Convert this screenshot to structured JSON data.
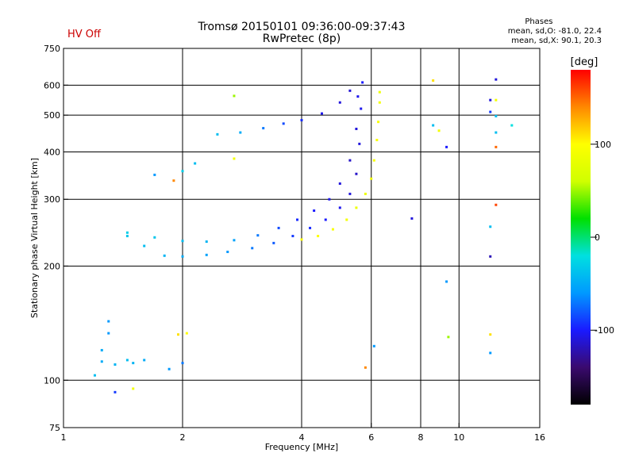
{
  "status_label": "HV Off",
  "title_line1": "Tromsø 20150101 09:36:00-09:37:43",
  "title_line2": "RwPretec (8p)",
  "phases": {
    "heading": "Phases",
    "line_o": "mean, sd,O: -81.0, 22.4",
    "line_x": "mean, sd,X:  90.1, 20.3"
  },
  "colorbar": {
    "unit": "[deg]",
    "range": [
      -180,
      180
    ],
    "ticks": [
      {
        "value": 100,
        "label": "100"
      },
      {
        "value": 0,
        "label": "0"
      },
      {
        "value": -100,
        "label": "-100"
      }
    ],
    "colors": [
      "#000000",
      "#3a0a6e",
      "#1a1aff",
      "#0099ff",
      "#00e0e0",
      "#00e000",
      "#d0ff00",
      "#ffff00",
      "#ff8800",
      "#ff0000"
    ]
  },
  "chart_data": {
    "type": "scatter",
    "xlabel": "Frequency [MHz]",
    "ylabel": "Stationary phase Virtual Height [km]",
    "x_scale": "log",
    "y_scale": "log",
    "xlim": [
      1,
      16
    ],
    "ylim": [
      75,
      750
    ],
    "x_ticks": [
      {
        "value": 1,
        "label": "1"
      },
      {
        "value": 2,
        "label": "2"
      },
      {
        "value": 4,
        "label": "4"
      },
      {
        "value": 6,
        "label": "6"
      },
      {
        "value": 8,
        "label": "8"
      },
      {
        "value": 10,
        "label": "10"
      },
      {
        "value": 16,
        "label": "16"
      }
    ],
    "y_ticks": [
      {
        "value": 75,
        "label": "75"
      },
      {
        "value": 100,
        "label": "100"
      },
      {
        "value": 200,
        "label": "200"
      },
      {
        "value": 300,
        "label": "300"
      },
      {
        "value": 400,
        "label": "400"
      },
      {
        "value": 500,
        "label": "500"
      },
      {
        "value": 600,
        "label": "600"
      },
      {
        "value": 750,
        "label": "750"
      }
    ],
    "grid_x": [
      2,
      4,
      6,
      8,
      10
    ],
    "grid_y": [
      100,
      200,
      300,
      400,
      500,
      600
    ],
    "grid": true,
    "color_by": "phase_deg",
    "traces": [
      {
        "name": "F-trace lower",
        "points": [
          [
            1.45,
            240,
            -35
          ],
          [
            1.6,
            226,
            -40
          ],
          [
            1.8,
            213,
            -45
          ],
          [
            2.0,
            212,
            -50
          ],
          [
            2.3,
            214,
            -55
          ],
          [
            2.6,
            218,
            -60
          ],
          [
            3.0,
            223,
            -70
          ],
          [
            3.4,
            230,
            -80
          ],
          [
            3.8,
            240,
            -90
          ],
          [
            4.2,
            252,
            -95
          ],
          [
            4.6,
            265,
            -100
          ],
          [
            5.0,
            285,
            -105
          ],
          [
            5.3,
            310,
            -110
          ],
          [
            5.5,
            350,
            -115
          ],
          [
            5.6,
            420,
            -110
          ],
          [
            5.65,
            520,
            -105
          ],
          [
            5.7,
            610,
            -100
          ]
        ]
      },
      {
        "name": "F-trace upper",
        "points": [
          [
            1.45,
            245,
            -30
          ],
          [
            1.7,
            238,
            -35
          ],
          [
            2.0,
            233,
            -40
          ],
          [
            2.3,
            232,
            -45
          ],
          [
            2.7,
            234,
            -55
          ],
          [
            3.1,
            241,
            -70
          ],
          [
            3.5,
            252,
            -85
          ],
          [
            3.9,
            265,
            -95
          ],
          [
            4.3,
            280,
            -100
          ],
          [
            4.7,
            300,
            -105
          ],
          [
            5.0,
            330,
            -110
          ],
          [
            5.3,
            380,
            -115
          ],
          [
            5.5,
            460,
            -110
          ],
          [
            5.55,
            560,
            -105
          ]
        ]
      },
      {
        "name": "F2 branch",
        "points": [
          [
            2.45,
            445,
            -40
          ],
          [
            2.8,
            450,
            -50
          ],
          [
            3.2,
            462,
            -70
          ],
          [
            3.6,
            475,
            -85
          ],
          [
            4.0,
            485,
            -95
          ],
          [
            4.5,
            505,
            -105
          ],
          [
            5.0,
            540,
            -110
          ],
          [
            5.3,
            580,
            -112
          ]
        ]
      },
      {
        "name": "X-trace",
        "points": [
          [
            4.0,
            235,
            100
          ],
          [
            4.4,
            240,
            98
          ],
          [
            4.8,
            250,
            95
          ],
          [
            5.2,
            265,
            90
          ],
          [
            5.5,
            285,
            85
          ],
          [
            5.8,
            310,
            85
          ],
          [
            6.0,
            340,
            90
          ],
          [
            6.1,
            380,
            92
          ],
          [
            6.2,
            430,
            95
          ],
          [
            6.25,
            480,
            95
          ],
          [
            6.3,
            540,
            90
          ],
          [
            6.3,
            575,
            85
          ]
        ]
      },
      {
        "name": "low echoes",
        "points": [
          [
            1.3,
            143,
            -60
          ],
          [
            1.3,
            133,
            -60
          ],
          [
            1.25,
            112,
            -50
          ],
          [
            1.35,
            110,
            -45
          ],
          [
            1.45,
            113,
            -40
          ],
          [
            1.5,
            111,
            -45
          ],
          [
            1.6,
            113,
            -50
          ],
          [
            1.85,
            107,
            -60
          ],
          [
            2.0,
            111,
            -70
          ],
          [
            1.2,
            103,
            -40
          ],
          [
            1.35,
            93,
            -90
          ],
          [
            1.25,
            120,
            -50
          ]
        ]
      },
      {
        "name": "scattered",
        "points": [
          [
            1.7,
            348,
            -60
          ],
          [
            1.9,
            336,
            140
          ],
          [
            2.0,
            356,
            -30
          ],
          [
            2.15,
            373,
            -40
          ],
          [
            2.7,
            562,
            50
          ],
          [
            2.7,
            384,
            90
          ],
          [
            1.5,
            95,
            90
          ],
          [
            1.95,
            132,
            110
          ],
          [
            2.05,
            133,
            100
          ],
          [
            5.8,
            108,
            140
          ],
          [
            6.1,
            123,
            -60
          ],
          [
            7.6,
            267,
            -110
          ],
          [
            8.6,
            617,
            110
          ],
          [
            8.6,
            470,
            -40
          ],
          [
            8.9,
            455,
            90
          ],
          [
            9.3,
            412,
            -100
          ],
          [
            9.3,
            182,
            -60
          ],
          [
            9.4,
            130,
            50
          ],
          [
            12.0,
            548,
            -110
          ],
          [
            12.0,
            510,
            -90
          ],
          [
            12.0,
            132,
            110
          ],
          [
            12.0,
            118,
            -60
          ],
          [
            12.4,
            621,
            -110
          ],
          [
            12.4,
            548,
            90
          ],
          [
            12.4,
            497,
            -40
          ],
          [
            12.4,
            450,
            -40
          ],
          [
            12.4,
            412,
            150
          ],
          [
            12.4,
            290,
            160
          ],
          [
            12.0,
            254,
            -40
          ],
          [
            12.0,
            212,
            -120
          ],
          [
            13.6,
            470,
            -20
          ]
        ]
      }
    ]
  }
}
